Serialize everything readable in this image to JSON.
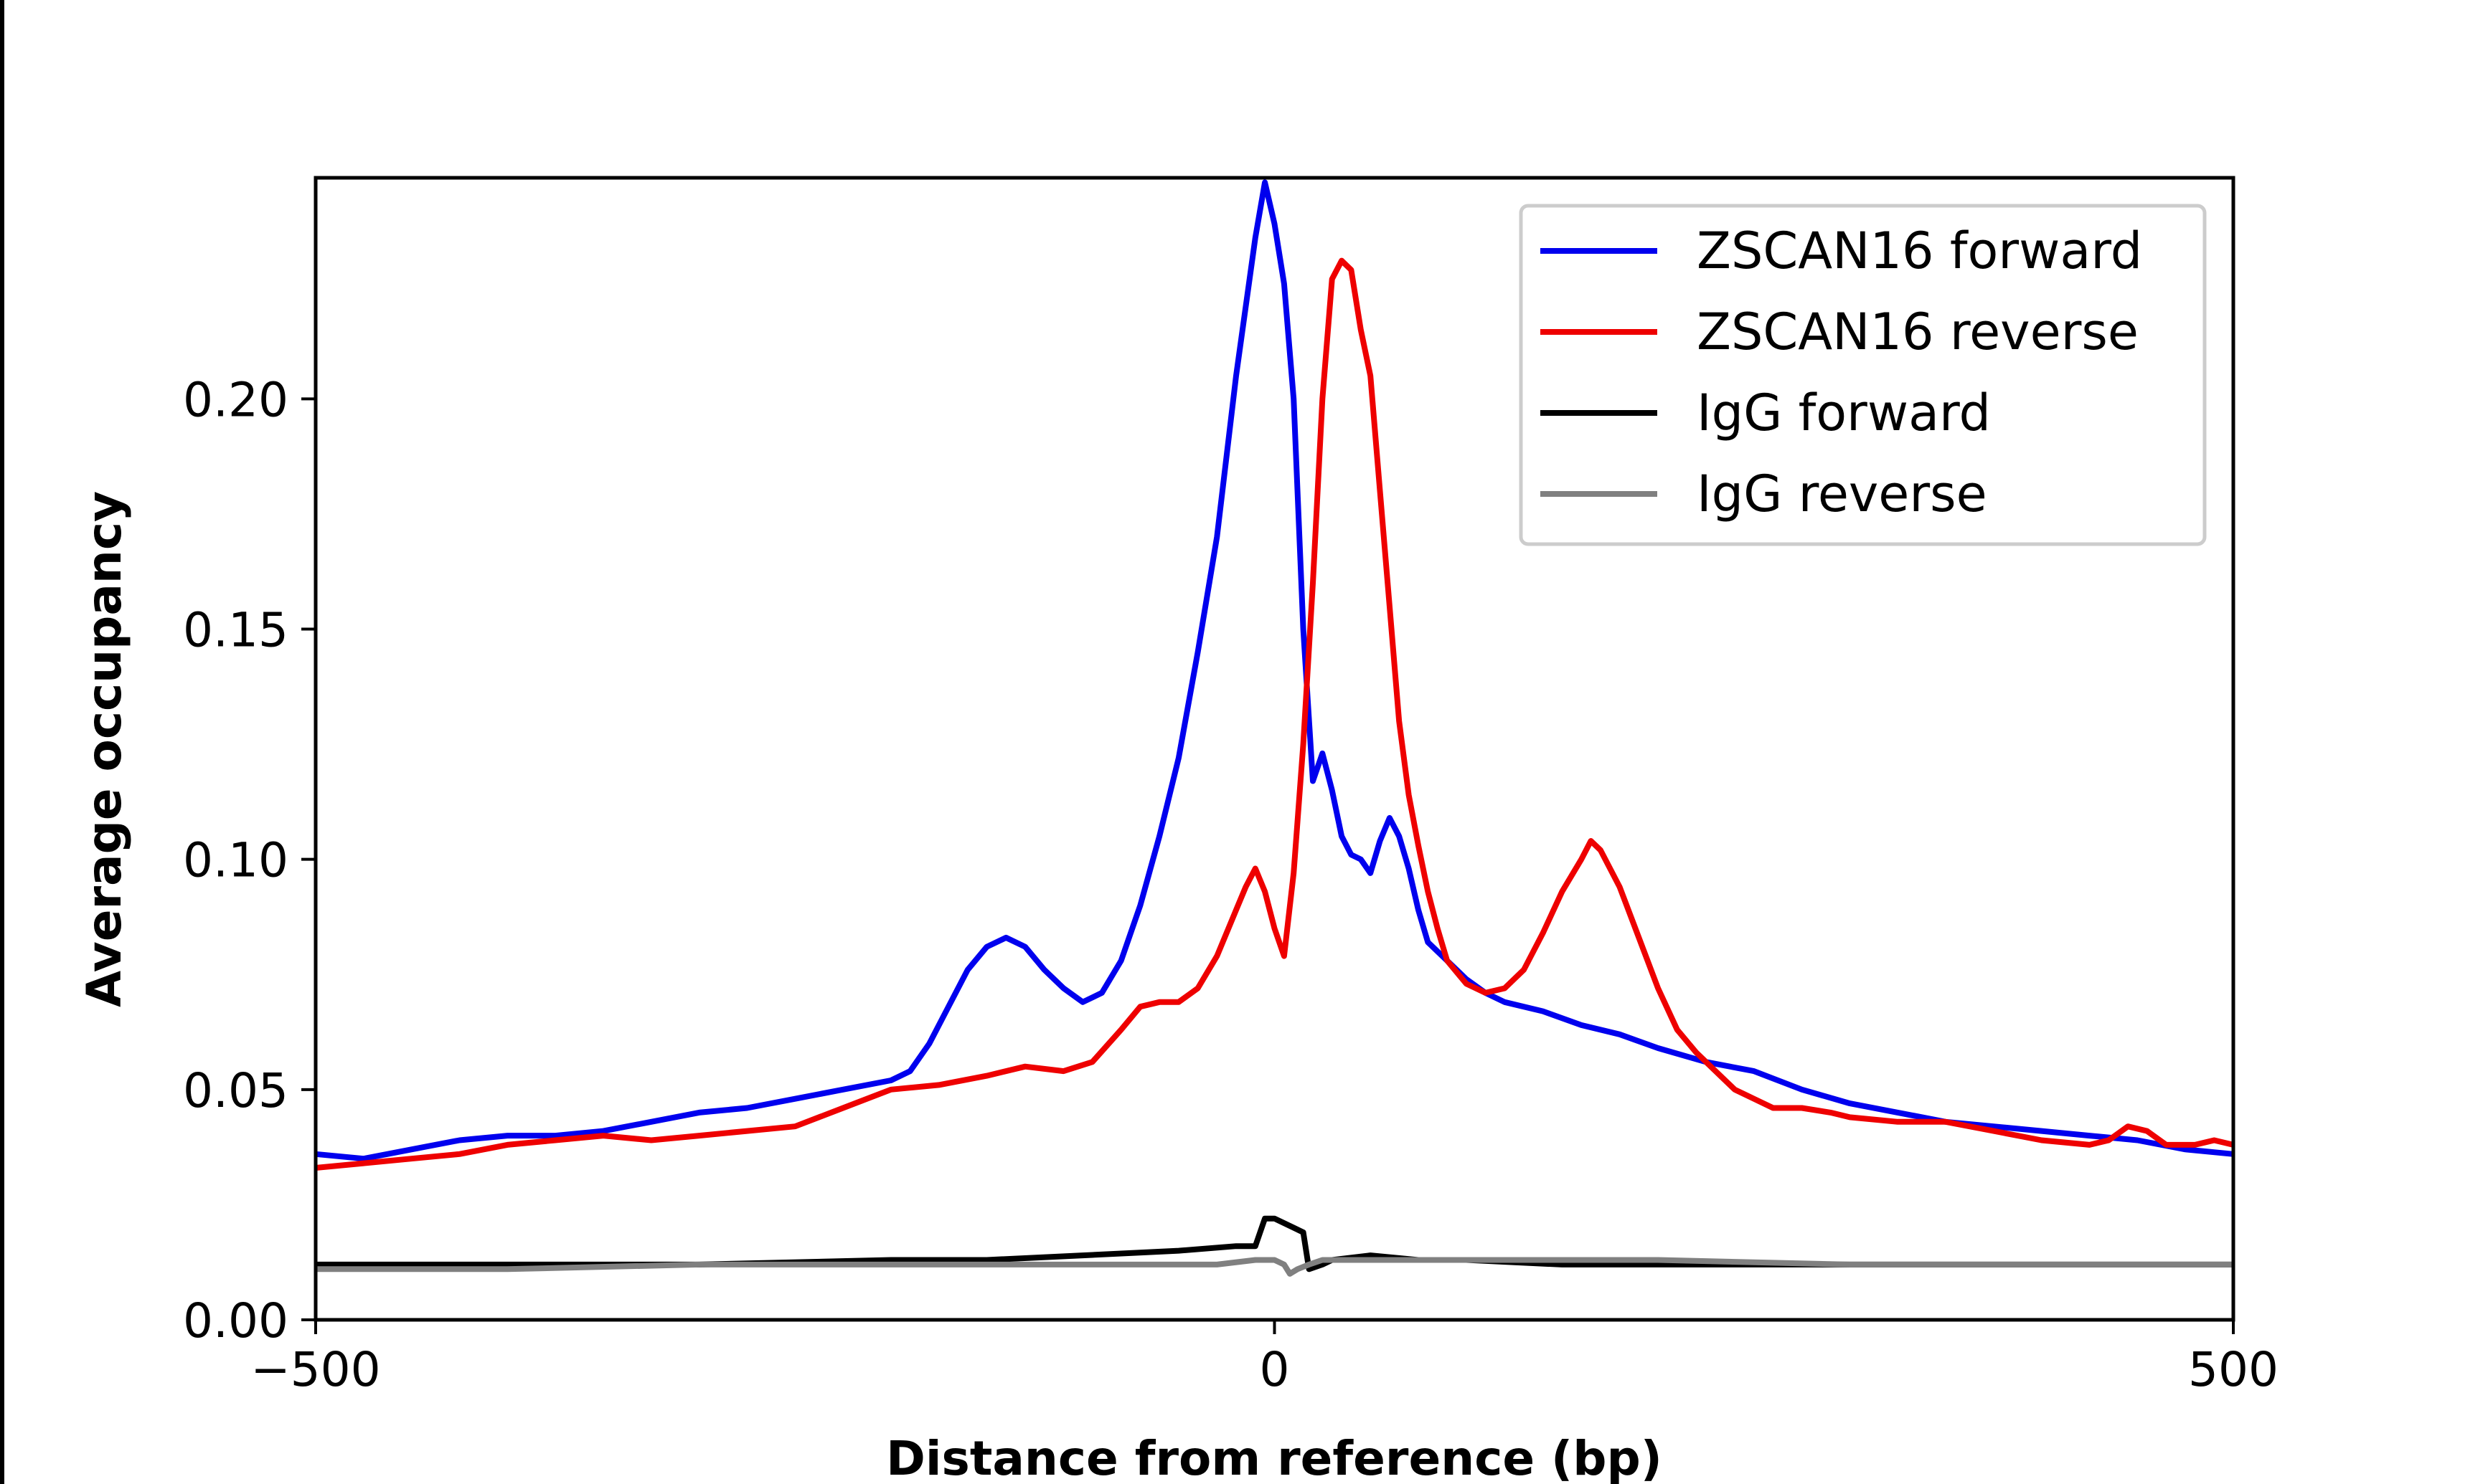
{
  "chart_data": {
    "type": "line",
    "title": "",
    "xlabel": "Distance from reference (bp)",
    "ylabel": "Average occupancy",
    "xlim": [
      -500,
      500
    ],
    "ylim": [
      0,
      0.248
    ],
    "x_ticks": [
      -500,
      0,
      500
    ],
    "x_tick_labels": [
      "−500",
      "0",
      "500"
    ],
    "y_ticks": [
      0,
      0.05,
      0.1,
      0.15,
      0.2
    ],
    "y_tick_labels": [
      "0.00",
      "0.05",
      "0.10",
      "0.15",
      "0.20"
    ],
    "grid": false,
    "legend_position": "top-right",
    "series": [
      {
        "name": "ZSCAN16 forward",
        "color": "#0000ee",
        "points": [
          [
            -500,
            0.036
          ],
          [
            -475,
            0.035
          ],
          [
            -450,
            0.037
          ],
          [
            -425,
            0.039
          ],
          [
            -400,
            0.04
          ],
          [
            -375,
            0.04
          ],
          [
            -350,
            0.041
          ],
          [
            -325,
            0.043
          ],
          [
            -300,
            0.045
          ],
          [
            -275,
            0.046
          ],
          [
            -250,
            0.048
          ],
          [
            -225,
            0.05
          ],
          [
            -200,
            0.052
          ],
          [
            -190,
            0.054
          ],
          [
            -180,
            0.06
          ],
          [
            -170,
            0.068
          ],
          [
            -160,
            0.076
          ],
          [
            -150,
            0.081
          ],
          [
            -140,
            0.083
          ],
          [
            -130,
            0.081
          ],
          [
            -120,
            0.076
          ],
          [
            -110,
            0.072
          ],
          [
            -100,
            0.069
          ],
          [
            -90,
            0.071
          ],
          [
            -80,
            0.078
          ],
          [
            -70,
            0.09
          ],
          [
            -60,
            0.105
          ],
          [
            -50,
            0.122
          ],
          [
            -40,
            0.145
          ],
          [
            -30,
            0.17
          ],
          [
            -20,
            0.205
          ],
          [
            -10,
            0.235
          ],
          [
            -5,
            0.247
          ],
          [
            0,
            0.238
          ],
          [
            5,
            0.225
          ],
          [
            10,
            0.2
          ],
          [
            15,
            0.15
          ],
          [
            20,
            0.117
          ],
          [
            25,
            0.123
          ],
          [
            30,
            0.115
          ],
          [
            35,
            0.105
          ],
          [
            40,
            0.101
          ],
          [
            45,
            0.1
          ],
          [
            50,
            0.097
          ],
          [
            55,
            0.104
          ],
          [
            60,
            0.109
          ],
          [
            65,
            0.105
          ],
          [
            70,
            0.098
          ],
          [
            75,
            0.089
          ],
          [
            80,
            0.082
          ],
          [
            90,
            0.078
          ],
          [
            100,
            0.074
          ],
          [
            110,
            0.071
          ],
          [
            120,
            0.069
          ],
          [
            140,
            0.067
          ],
          [
            160,
            0.064
          ],
          [
            180,
            0.062
          ],
          [
            200,
            0.059
          ],
          [
            225,
            0.056
          ],
          [
            250,
            0.054
          ],
          [
            275,
            0.05
          ],
          [
            300,
            0.047
          ],
          [
            325,
            0.045
          ],
          [
            350,
            0.043
          ],
          [
            375,
            0.042
          ],
          [
            400,
            0.041
          ],
          [
            425,
            0.04
          ],
          [
            450,
            0.039
          ],
          [
            475,
            0.037
          ],
          [
            500,
            0.036
          ]
        ]
      },
      {
        "name": "ZSCAN16 reverse",
        "color": "#ee0000",
        "points": [
          [
            -500,
            0.033
          ],
          [
            -475,
            0.034
          ],
          [
            -450,
            0.035
          ],
          [
            -425,
            0.036
          ],
          [
            -400,
            0.038
          ],
          [
            -375,
            0.039
          ],
          [
            -350,
            0.04
          ],
          [
            -325,
            0.039
          ],
          [
            -300,
            0.04
          ],
          [
            -275,
            0.041
          ],
          [
            -250,
            0.042
          ],
          [
            -225,
            0.046
          ],
          [
            -200,
            0.05
          ],
          [
            -175,
            0.051
          ],
          [
            -150,
            0.053
          ],
          [
            -130,
            0.055
          ],
          [
            -110,
            0.054
          ],
          [
            -95,
            0.056
          ],
          [
            -80,
            0.063
          ],
          [
            -70,
            0.068
          ],
          [
            -60,
            0.069
          ],
          [
            -50,
            0.069
          ],
          [
            -40,
            0.072
          ],
          [
            -30,
            0.079
          ],
          [
            -20,
            0.089
          ],
          [
            -15,
            0.094
          ],
          [
            -10,
            0.098
          ],
          [
            -5,
            0.093
          ],
          [
            0,
            0.085
          ],
          [
            5,
            0.079
          ],
          [
            10,
            0.097
          ],
          [
            15,
            0.125
          ],
          [
            20,
            0.16
          ],
          [
            25,
            0.2
          ],
          [
            30,
            0.226
          ],
          [
            35,
            0.23
          ],
          [
            40,
            0.228
          ],
          [
            45,
            0.215
          ],
          [
            50,
            0.205
          ],
          [
            55,
            0.18
          ],
          [
            60,
            0.155
          ],
          [
            65,
            0.13
          ],
          [
            70,
            0.114
          ],
          [
            75,
            0.103
          ],
          [
            80,
            0.093
          ],
          [
            85,
            0.085
          ],
          [
            90,
            0.078
          ],
          [
            100,
            0.073
          ],
          [
            110,
            0.071
          ],
          [
            120,
            0.072
          ],
          [
            130,
            0.076
          ],
          [
            140,
            0.084
          ],
          [
            150,
            0.093
          ],
          [
            160,
            0.1
          ],
          [
            165,
            0.104
          ],
          [
            170,
            0.102
          ],
          [
            180,
            0.094
          ],
          [
            190,
            0.083
          ],
          [
            200,
            0.072
          ],
          [
            210,
            0.063
          ],
          [
            220,
            0.058
          ],
          [
            230,
            0.054
          ],
          [
            240,
            0.05
          ],
          [
            250,
            0.048
          ],
          [
            260,
            0.046
          ],
          [
            275,
            0.046
          ],
          [
            290,
            0.045
          ],
          [
            300,
            0.044
          ],
          [
            325,
            0.043
          ],
          [
            350,
            0.043
          ],
          [
            375,
            0.041
          ],
          [
            400,
            0.039
          ],
          [
            425,
            0.038
          ],
          [
            435,
            0.039
          ],
          [
            445,
            0.042
          ],
          [
            455,
            0.041
          ],
          [
            465,
            0.038
          ],
          [
            480,
            0.038
          ],
          [
            490,
            0.039
          ],
          [
            500,
            0.038
          ]
        ]
      },
      {
        "name": "IgG forward",
        "color": "#000000",
        "points": [
          [
            -500,
            0.012
          ],
          [
            -400,
            0.012
          ],
          [
            -300,
            0.012
          ],
          [
            -200,
            0.013
          ],
          [
            -150,
            0.013
          ],
          [
            -100,
            0.014
          ],
          [
            -50,
            0.015
          ],
          [
            -20,
            0.016
          ],
          [
            -10,
            0.016
          ],
          [
            -5,
            0.022
          ],
          [
            0,
            0.022
          ],
          [
            5,
            0.021
          ],
          [
            10,
            0.02
          ],
          [
            15,
            0.019
          ],
          [
            18,
            0.011
          ],
          [
            25,
            0.012
          ],
          [
            30,
            0.013
          ],
          [
            50,
            0.014
          ],
          [
            75,
            0.013
          ],
          [
            100,
            0.013
          ],
          [
            150,
            0.012
          ],
          [
            200,
            0.012
          ],
          [
            300,
            0.012
          ],
          [
            400,
            0.012
          ],
          [
            500,
            0.012
          ]
        ]
      },
      {
        "name": "IgG reverse",
        "color": "#808080",
        "points": [
          [
            -500,
            0.011
          ],
          [
            -400,
            0.011
          ],
          [
            -300,
            0.012
          ],
          [
            -200,
            0.012
          ],
          [
            -100,
            0.012
          ],
          [
            -50,
            0.012
          ],
          [
            -30,
            0.012
          ],
          [
            -10,
            0.013
          ],
          [
            0,
            0.013
          ],
          [
            5,
            0.012
          ],
          [
            8,
            0.01
          ],
          [
            12,
            0.011
          ],
          [
            18,
            0.012
          ],
          [
            25,
            0.013
          ],
          [
            40,
            0.013
          ],
          [
            60,
            0.013
          ],
          [
            100,
            0.013
          ],
          [
            150,
            0.013
          ],
          [
            200,
            0.013
          ],
          [
            300,
            0.012
          ],
          [
            400,
            0.012
          ],
          [
            500,
            0.012
          ]
        ]
      }
    ]
  }
}
